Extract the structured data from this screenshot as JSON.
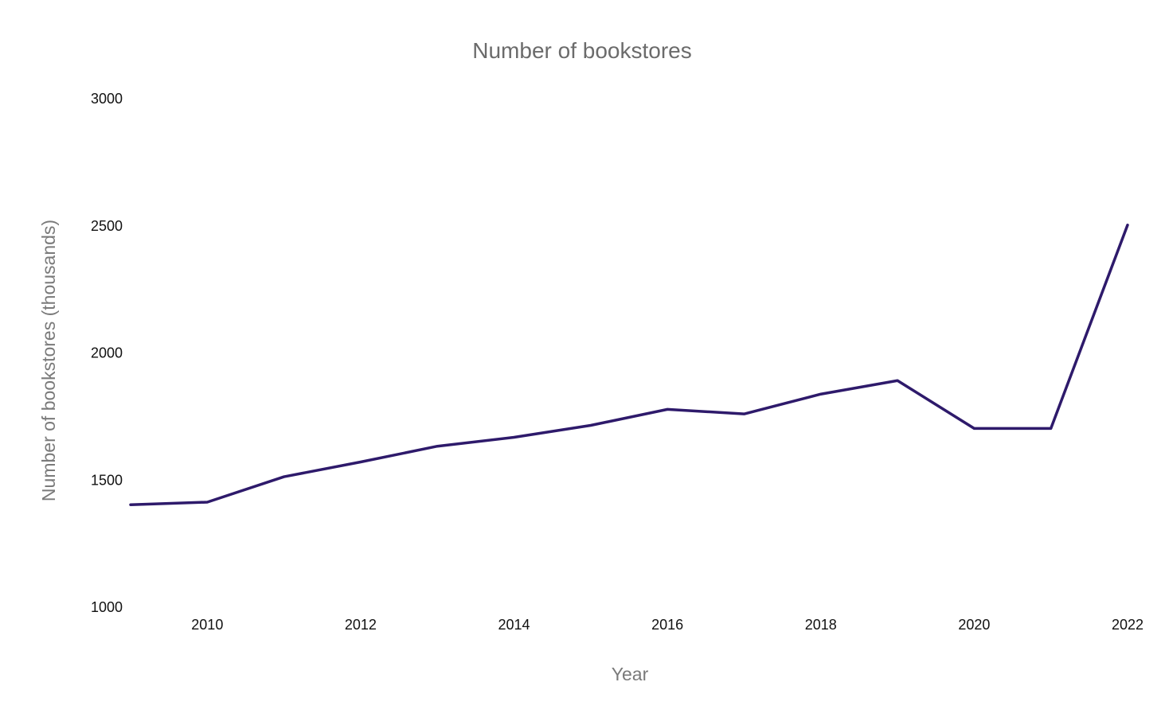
{
  "chart_data": {
    "type": "line",
    "title": "Number of bookstores",
    "xlabel": "Year",
    "ylabel": "Number of bookstores (thousands)",
    "xlim": [
      2009,
      2022
    ],
    "ylim": [
      1000,
      3000
    ],
    "xticks": [
      2010,
      2012,
      2014,
      2016,
      2018,
      2020,
      2022
    ],
    "yticks": [
      1000,
      1500,
      2000,
      2500,
      3000
    ],
    "grid": false,
    "legend": "none",
    "series": [
      {
        "color": "#2e1a6b",
        "x": [
          2009,
          2010,
          2011,
          2012,
          2013,
          2014,
          2015,
          2016,
          2017,
          2018,
          2019,
          2020,
          2021,
          2022
        ],
        "y": [
          1400,
          1410,
          1510,
          1568,
          1630,
          1665,
          1712,
          1775,
          1757,
          1835,
          1888,
          1700,
          1700,
          2500
        ]
      }
    ]
  }
}
